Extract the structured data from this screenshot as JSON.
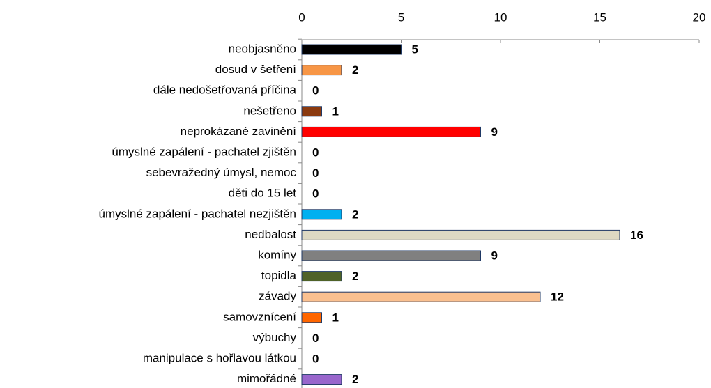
{
  "chart_data": {
    "type": "barh",
    "categories": [
      "neobjasněno",
      "dosud v šetření",
      "dále nedošetřovaná příčina",
      "nešetřeno",
      "neprokázané zavinění",
      "úmyslné zapálení - pachatel zjištěn",
      "sebevražedný úmysl, nemoc",
      "děti do 15 let",
      "úmyslné zapálení - pachatel nezjištěn",
      "nedbalost",
      "komíny",
      "topidla",
      "závady",
      "samovznícení",
      "výbuchy",
      "manipulace s hořlavou látkou",
      "mimořádné"
    ],
    "values": [
      5,
      2,
      0,
      1,
      9,
      0,
      0,
      0,
      2,
      16,
      9,
      2,
      12,
      1,
      0,
      0,
      2
    ],
    "colors": [
      "#000000",
      "#f79646",
      null,
      "#8b3a0f",
      "#ff0000",
      null,
      null,
      null,
      "#00b0f0",
      "#ddd9c3",
      "#808080",
      "#4f6228",
      "#fac090",
      "#ff6600",
      null,
      null,
      "#9966cc"
    ],
    "xlim": [
      0,
      20
    ],
    "xticks": [
      0,
      5,
      10,
      15,
      20
    ],
    "axis_position": "top"
  }
}
